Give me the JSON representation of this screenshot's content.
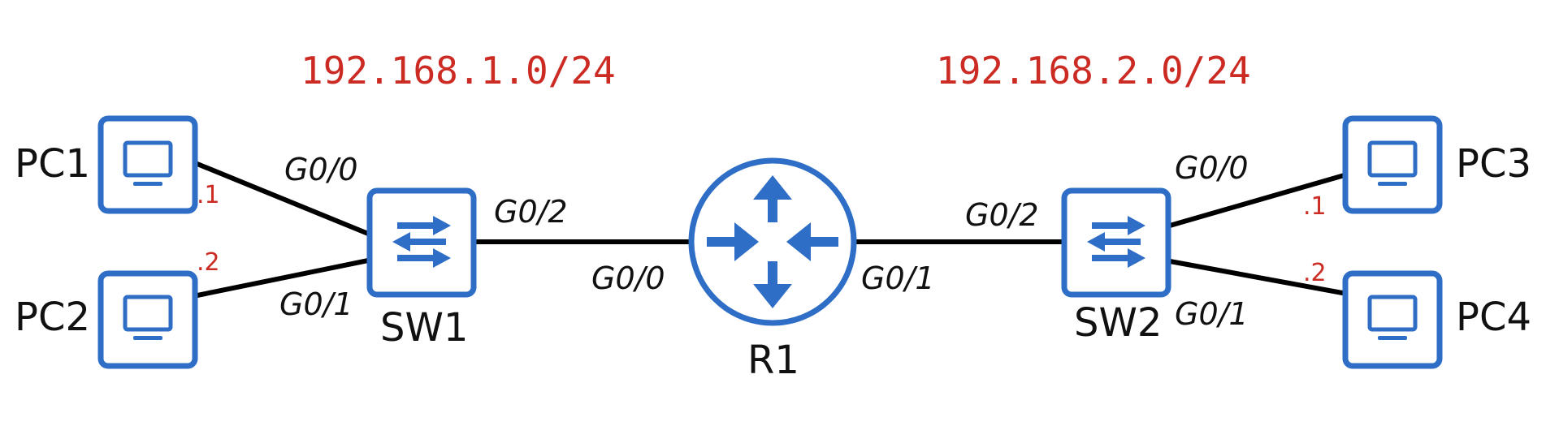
{
  "colors": {
    "device": "#2f6ec6",
    "link": "#000000",
    "subnet": "#cc2b24",
    "host_octet": "#cc2b24",
    "text": "#111111"
  },
  "subnets": {
    "left": "192.168.1.0/24",
    "right": "192.168.2.0/24"
  },
  "devices": {
    "pc1": {
      "label": "PC1",
      "icon": "pc-icon",
      "host": ".1"
    },
    "pc2": {
      "label": "PC2",
      "icon": "pc-icon",
      "host": ".2"
    },
    "pc3": {
      "label": "PC3",
      "icon": "pc-icon",
      "host": ".1"
    },
    "pc4": {
      "label": "PC4",
      "icon": "pc-icon",
      "host": ".2"
    },
    "sw1": {
      "label": "SW1",
      "icon": "switch-icon"
    },
    "sw2": {
      "label": "SW2",
      "icon": "switch-icon"
    },
    "r1": {
      "label": "R1",
      "icon": "router-icon"
    }
  },
  "ports": {
    "sw1_g00": "G0/0",
    "sw1_g01": "G0/1",
    "sw1_g02": "G0/2",
    "r1_g00": "G0/0",
    "r1_g01": "G0/1",
    "sw2_g02": "G0/2",
    "sw2_g00": "G0/0",
    "sw2_g01": "G0/1"
  },
  "links": [
    {
      "from": "pc1",
      "to": "sw1"
    },
    {
      "from": "pc2",
      "to": "sw1"
    },
    {
      "from": "sw1",
      "to": "r1"
    },
    {
      "from": "r1",
      "to": "sw2"
    },
    {
      "from": "sw2",
      "to": "pc3"
    },
    {
      "from": "sw2",
      "to": "pc4"
    }
  ]
}
